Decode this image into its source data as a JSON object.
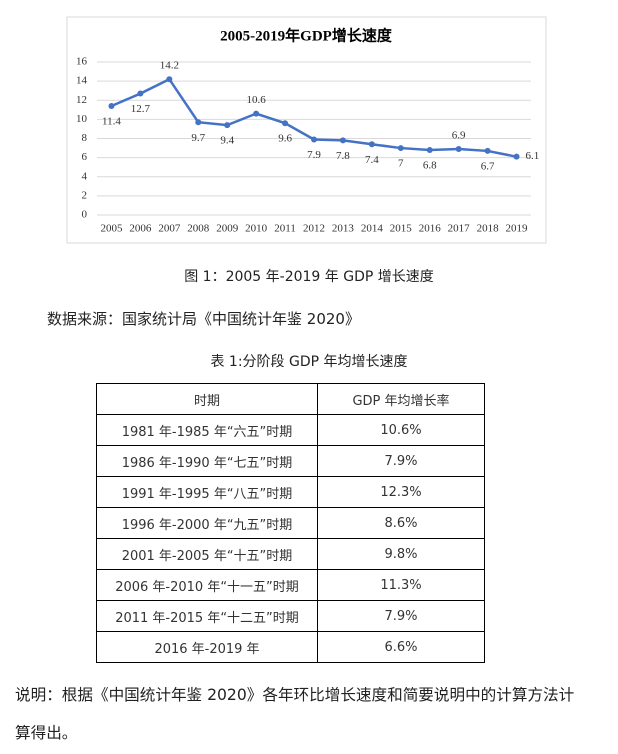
{
  "chart_data": {
    "type": "line",
    "title": "2005-2019年GDP增长速度",
    "categories": [
      "2005",
      "2006",
      "2007",
      "2008",
      "2009",
      "2010",
      "2011",
      "2012",
      "2013",
      "2014",
      "2015",
      "2016",
      "2017",
      "2018",
      "2019"
    ],
    "values": [
      11.4,
      12.7,
      14.2,
      9.7,
      9.4,
      10.6,
      9.6,
      7.9,
      7.8,
      7.4,
      7,
      6.8,
      6.9,
      6.7,
      6.1
    ],
    "color": "#4472c4",
    "ylim": [
      0,
      16
    ],
    "yticks": [
      0,
      2,
      4,
      6,
      8,
      10,
      12,
      14,
      16
    ],
    "grid": true
  },
  "figure_caption": "图 1：2005 年-2019 年 GDP 增长速度",
  "source": "数据来源：国家统计局《中国统计年鉴 2020》",
  "table": {
    "title": "表 1:分阶段 GDP 年均增长速度",
    "header": [
      "时期",
      "GDP 年均增长率"
    ],
    "rows": [
      [
        "1981 年-1985 年“六五”时期",
        "10.6%"
      ],
      [
        "1986 年-1990 年“七五”时期",
        "7.9%"
      ],
      [
        "1991 年-1995 年“八五”时期",
        "12.3%"
      ],
      [
        "1996 年-2000 年“九五”时期",
        "8.6%"
      ],
      [
        "2001 年-2005 年“十五”时期",
        "9.8%"
      ],
      [
        "2006 年-2010 年“十一五”时期",
        "11.3%"
      ],
      [
        "2011 年-2015 年“十二五”时期",
        "7.9%"
      ],
      [
        "2016 年-2019 年",
        "6.6%"
      ]
    ]
  },
  "note": "说明：根据《中国统计年鉴 2020》各年环比增长速度和简要说明中的计算方法计算得出。"
}
